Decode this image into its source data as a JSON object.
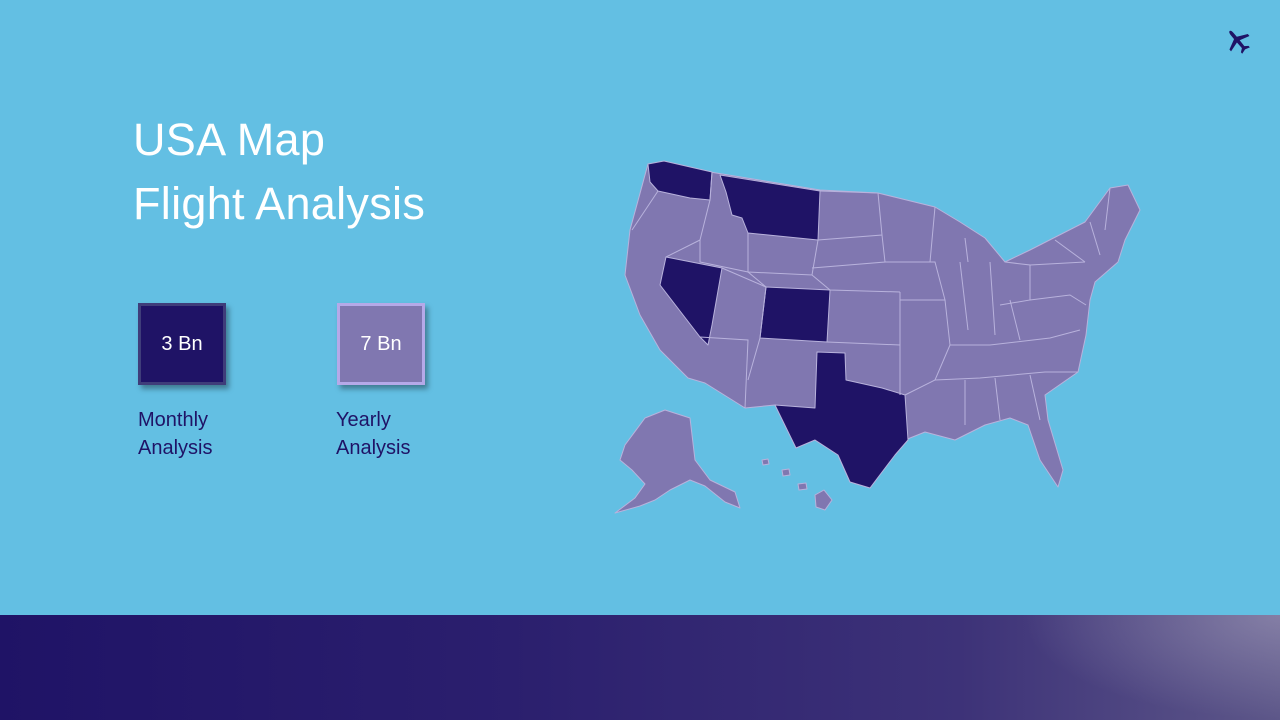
{
  "title": {
    "line1": "USA Map",
    "line2": "Flight Analysis"
  },
  "kpis": [
    {
      "value": "3 Bn",
      "label_line1": "Monthly",
      "label_line2": "Analysis",
      "color": "#1f1366"
    },
    {
      "value": "7 Bn",
      "label_line1": "Yearly",
      "label_line2": "Analysis",
      "color": "#8077b0"
    }
  ],
  "map": {
    "base_color": "#8077b0",
    "highlight_color": "#1f1366",
    "highlighted_states": [
      "Washington",
      "Montana",
      "Nevada",
      "Colorado",
      "Texas"
    ]
  },
  "icons": {
    "corner": "airplane-icon"
  },
  "colors": {
    "background": "#63bfe3",
    "title": "#ffffff",
    "label": "#1f1366"
  }
}
